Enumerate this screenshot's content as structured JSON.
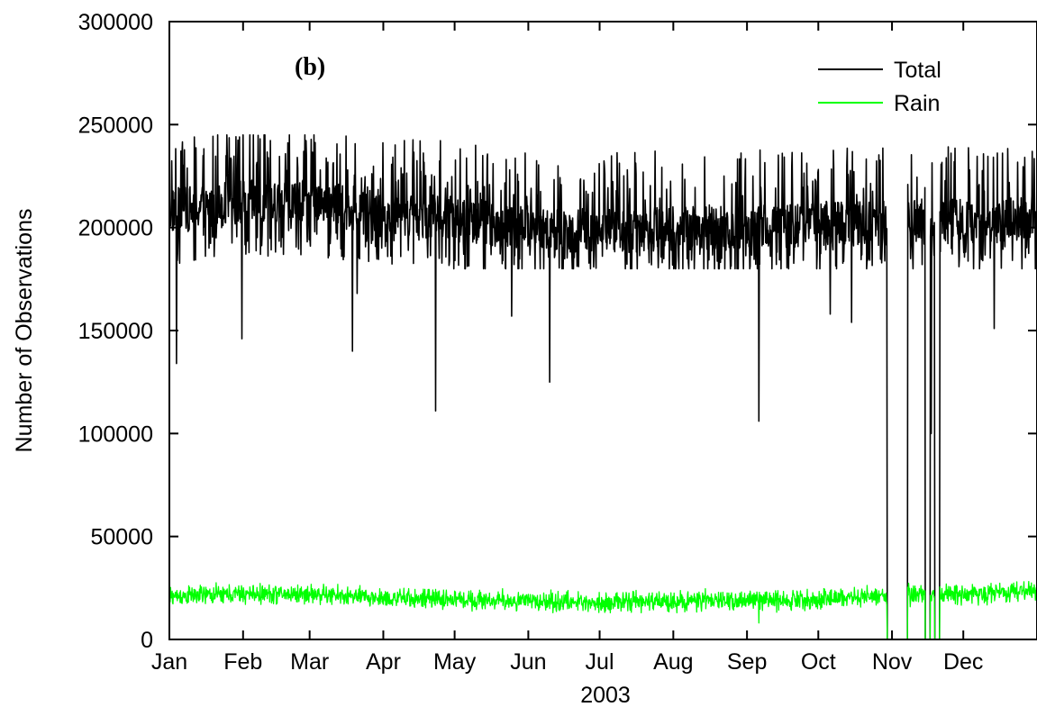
{
  "chart_data": {
    "type": "line",
    "panel_label": "(b)",
    "xlabel": "2003",
    "ylabel": "Number of Observations",
    "x_unit": "day of year 2003",
    "xlim": [
      0,
      365
    ],
    "ylim": [
      0,
      300000
    ],
    "y_ticks": [
      0,
      50000,
      100000,
      150000,
      200000,
      250000,
      300000
    ],
    "x_ticks": [
      {
        "label": "Jan",
        "day": 0
      },
      {
        "label": "Feb",
        "day": 31
      },
      {
        "label": "Mar",
        "day": 59
      },
      {
        "label": "Apr",
        "day": 90
      },
      {
        "label": "May",
        "day": 120
      },
      {
        "label": "Jun",
        "day": 151
      },
      {
        "label": "Jul",
        "day": 181
      },
      {
        "label": "Aug",
        "day": 212
      },
      {
        "label": "Sep",
        "day": 243
      },
      {
        "label": "Oct",
        "day": 273
      },
      {
        "label": "Nov",
        "day": 304
      },
      {
        "label": "Dec",
        "day": 334
      }
    ],
    "legend": {
      "position": "top-right"
    },
    "series": [
      {
        "name": "Total",
        "color": "#000000",
        "baseline_anchors": [
          [
            0,
            208000
          ],
          [
            30,
            212000
          ],
          [
            60,
            212000
          ],
          [
            90,
            208000
          ],
          [
            120,
            204000
          ],
          [
            150,
            200000
          ],
          [
            180,
            198000
          ],
          [
            210,
            200000
          ],
          [
            240,
            200000
          ],
          [
            270,
            202000
          ],
          [
            300,
            202000
          ],
          [
            310,
            203000
          ],
          [
            340,
            203000
          ],
          [
            365,
            205000
          ]
        ],
        "typical_range": [
          180000,
          245000
        ],
        "dips": [
          {
            "day": 3,
            "value": 134000
          },
          {
            "day": 30.5,
            "value": 146000
          },
          {
            "day": 77,
            "value": 140000
          },
          {
            "day": 79,
            "value": 168000
          },
          {
            "day": 112,
            "value": 111000
          },
          {
            "day": 144,
            "value": 157000
          },
          {
            "day": 160,
            "value": 125000
          },
          {
            "day": 248,
            "value": 106000
          },
          {
            "day": 278,
            "value": 158000
          },
          {
            "day": 287,
            "value": 154000
          },
          {
            "day": 347,
            "value": 151000
          }
        ],
        "outages": [
          {
            "start": 302,
            "end": 310.5
          },
          {
            "start": 318,
            "end": 320
          },
          {
            "start": 322,
            "end": 324
          }
        ],
        "partial_drops": [
          {
            "day": 320.5,
            "value": 100000
          }
        ]
      },
      {
        "name": "Rain",
        "color": "#00ff00",
        "baseline_anchors": [
          [
            0,
            21000
          ],
          [
            30,
            22000
          ],
          [
            60,
            22000
          ],
          [
            90,
            20000
          ],
          [
            120,
            19500
          ],
          [
            150,
            18500
          ],
          [
            180,
            18000
          ],
          [
            210,
            18500
          ],
          [
            240,
            19000
          ],
          [
            270,
            19500
          ],
          [
            300,
            21000
          ],
          [
            310,
            22000
          ],
          [
            340,
            22000
          ],
          [
            365,
            24000
          ]
        ],
        "typical_range": [
          13000,
          29000
        ],
        "dips": [
          {
            "day": 248,
            "value": 8000
          }
        ],
        "outages": [
          {
            "start": 302,
            "end": 310.5
          },
          {
            "start": 318,
            "end": 320
          },
          {
            "start": 322,
            "end": 324
          }
        ]
      }
    ]
  }
}
